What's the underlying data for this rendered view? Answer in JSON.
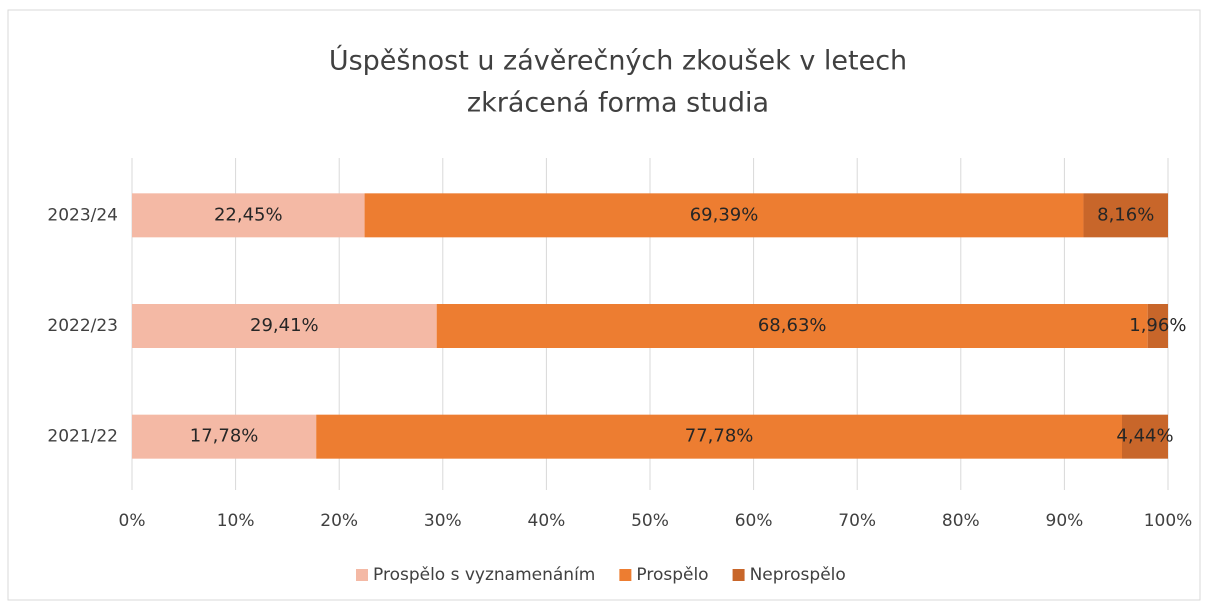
{
  "chart_data": {
    "type": "stacked_barh",
    "title": "Úspěšnost u závěrečných zkoušek v letech",
    "subtitle": "zkrácená forma studia",
    "categories": [
      "2023/24",
      "2022/23",
      "2021/22"
    ],
    "series": [
      {
        "name": "Prospělo s vyznamenáním",
        "color": "#f4b9a5",
        "values": [
          22.45,
          29.41,
          17.78
        ],
        "value_labels": [
          "22,45%",
          "29,41%",
          "17,78%"
        ]
      },
      {
        "name": "Prospělo",
        "color": "#ed7d31",
        "values": [
          69.39,
          68.63,
          77.78
        ],
        "value_labels": [
          "69,39%",
          "68,63%",
          "77,78%"
        ]
      },
      {
        "name": "Neprospělo",
        "color": "#c8662a",
        "values": [
          8.16,
          1.96,
          4.44
        ],
        "value_labels": [
          "8,16%",
          "1,96%",
          "4,44%"
        ]
      }
    ],
    "xlim": [
      0,
      100
    ],
    "xticks": [
      {
        "value": 0,
        "label": "0%"
      },
      {
        "value": 10,
        "label": "10%"
      },
      {
        "value": 20,
        "label": "20%"
      },
      {
        "value": 30,
        "label": "30%"
      },
      {
        "value": 40,
        "label": "40%"
      },
      {
        "value": 50,
        "label": "50%"
      },
      {
        "value": 60,
        "label": "60%"
      },
      {
        "value": 70,
        "label": "70%"
      },
      {
        "value": 80,
        "label": "80%"
      },
      {
        "value": 90,
        "label": "90%"
      },
      {
        "value": 100,
        "label": "100%"
      }
    ],
    "grid": true,
    "legend": "bottom"
  }
}
